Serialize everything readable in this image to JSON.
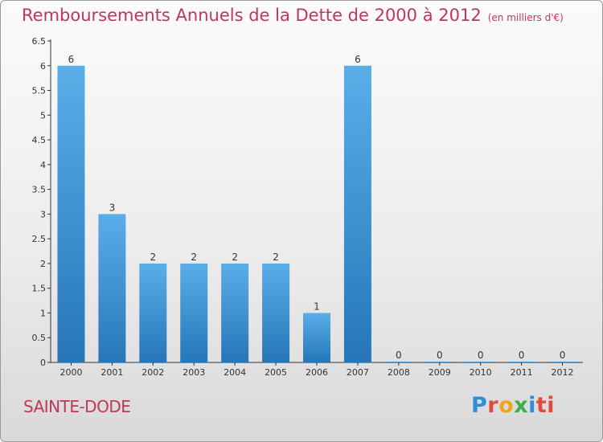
{
  "header": {
    "title": "Remboursements Annuels de la Dette de 2000 à 2012",
    "unit": "(en milliers d'€)"
  },
  "footer": {
    "commune": "SAINTE-DODE",
    "logo_letters": [
      "P",
      "r",
      "o",
      "x",
      "i",
      "ti"
    ]
  },
  "colors": {
    "title": "#c0365a",
    "commune": "#c0365a",
    "bar_light": "#5aaee8",
    "bar_dark": "#2676b8",
    "axis": "#333333"
  },
  "chart_data": {
    "type": "bar",
    "categories": [
      "2000",
      "2001",
      "2002",
      "2003",
      "2004",
      "2005",
      "2006",
      "2007",
      "2008",
      "2009",
      "2010",
      "2011",
      "2012"
    ],
    "values": [
      6,
      3,
      2,
      2,
      2,
      2,
      1,
      6,
      0,
      0,
      0,
      0,
      0
    ],
    "data_labels": [
      "6",
      "3",
      "2",
      "2",
      "2",
      "2",
      "1",
      "6",
      "0",
      "0",
      "0",
      "0",
      "0"
    ],
    "yticks": [
      "0",
      "0.5",
      "1",
      "1.5",
      "2",
      "2.5",
      "3",
      "3.5",
      "4",
      "4.5",
      "5",
      "5.5",
      "6",
      "6.5"
    ],
    "ylim": [
      0,
      6.5
    ],
    "grid": false,
    "legend": "none"
  }
}
